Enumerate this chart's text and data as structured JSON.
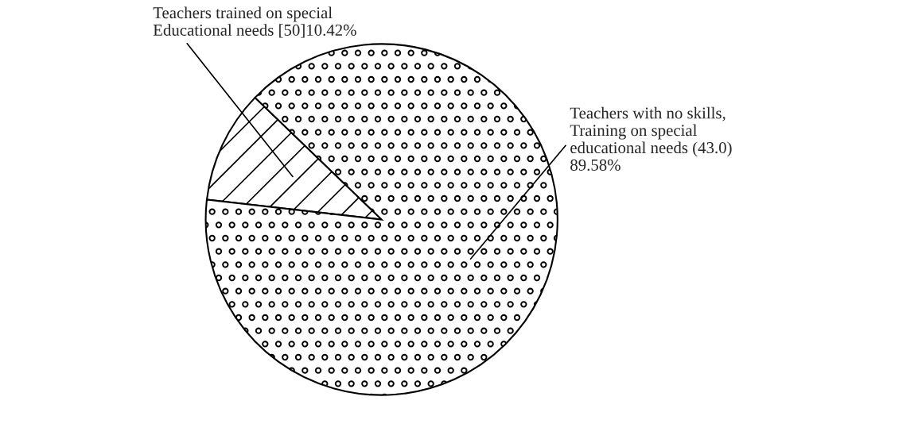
{
  "chart_data": {
    "type": "pie",
    "categories": [
      "Teachers trained on special\nEducational needs [50]10.42%",
      "Teachers with no skills,\nTraining on special\neducational needs (43.0)\n89.58%"
    ],
    "values": [
      10.42,
      89.58
    ],
    "colors": [
      "#ffffff",
      "#ffffff"
    ],
    "legend": false
  }
}
